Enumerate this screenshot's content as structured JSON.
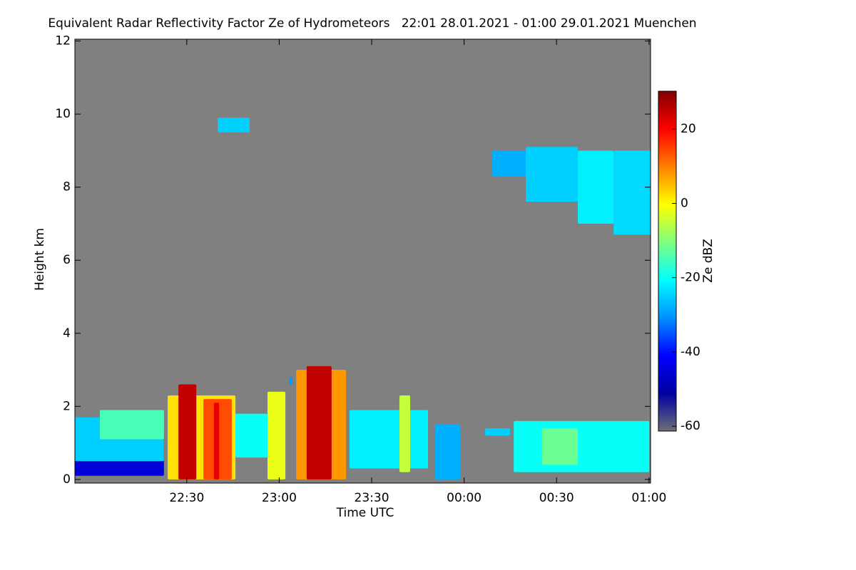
{
  "chart_data": {
    "type": "heatmap",
    "title": "Equivalent Radar Reflectivity Factor Ze of Hydrometeors   22:01 28.01.2021 - 01:00 29.01.2021 Muenchen",
    "x_label": "Time UTC",
    "y_label": "Height km",
    "colorbar_label": "Ze dBZ",
    "background": "#808080",
    "xlim": [
      1313.7,
      1500.5
    ],
    "xticks": [
      {
        "value": 1350,
        "label": "22:30"
      },
      {
        "value": 1380,
        "label": "23:00"
      },
      {
        "value": 1410,
        "label": "23:30"
      },
      {
        "value": 1440,
        "label": "00:00"
      },
      {
        "value": 1470,
        "label": "00:30"
      },
      {
        "value": 1500,
        "label": "01:00"
      }
    ],
    "ylim": [
      -0.1,
      12.05
    ],
    "yticks": [
      0,
      2,
      4,
      6,
      8,
      10,
      12
    ],
    "zlim": [
      -61.3,
      30.2
    ],
    "zticks": [
      -60,
      -40,
      -20,
      0,
      20
    ],
    "colors": [
      "#6e6e78",
      "#0000a0",
      "#0000ff",
      "#0090ff",
      "#00ffff",
      "#80ff80",
      "#ffff00",
      "#ff8000",
      "#ff0000",
      "#800000"
    ],
    "echoes": [
      {
        "t": [
          1313.7,
          1342.6
        ],
        "h": [
          0.1,
          1.6
        ],
        "ze": -45
      },
      {
        "t": [
          1313.7,
          1342.6
        ],
        "h": [
          0.5,
          1.7
        ],
        "ze": -25
      },
      {
        "t": [
          1321.8,
          1342.6
        ],
        "h": [
          1.1,
          1.9
        ],
        "ze": -15
      },
      {
        "t": [
          1343.8,
          1365.8
        ],
        "h": [
          0,
          2.3
        ],
        "ze": 2
      },
      {
        "t": [
          1347.3,
          1353.1
        ],
        "h": [
          0,
          2.6
        ],
        "ze": 25
      },
      {
        "t": [
          1355.4,
          1364.6
        ],
        "h": [
          0,
          2.2
        ],
        "ze": 14
      },
      {
        "t": [
          1358.8,
          1360.5
        ],
        "h": [
          0,
          2.1
        ],
        "ze": 22
      },
      {
        "t": [
          1365.8,
          1376.2
        ],
        "h": [
          0.6,
          1.8
        ],
        "ze": -20
      },
      {
        "t": [
          1376.2,
          1382
        ],
        "h": [
          0,
          2.4
        ],
        "ze": -2
      },
      {
        "t": [
          1383.2,
          1384.3
        ],
        "h": [
          2.6,
          2.8
        ],
        "ze": -30
      },
      {
        "t": [
          1385.5,
          1401.7
        ],
        "h": [
          0,
          3.0
        ],
        "ze": 8
      },
      {
        "t": [
          1388.9,
          1397.0
        ],
        "h": [
          0,
          3.1
        ],
        "ze": 25
      },
      {
        "t": [
          1402.8,
          1428.3
        ],
        "h": [
          0.3,
          1.9
        ],
        "ze": -22
      },
      {
        "t": [
          1419.0,
          1422.5
        ],
        "h": [
          0.2,
          2.3
        ],
        "ze": -5
      },
      {
        "t": [
          1430.6,
          1438.7
        ],
        "h": [
          0,
          1.5
        ],
        "ze": -28
      },
      {
        "t": [
          1446.8,
          1454.9
        ],
        "h": [
          1.2,
          1.4
        ],
        "ze": -25
      },
      {
        "t": [
          1456.1,
          1500.1
        ],
        "h": [
          0.2,
          1.6
        ],
        "ze": -20
      },
      {
        "t": [
          1465.3,
          1476.9
        ],
        "h": [
          0.4,
          1.4
        ],
        "ze": -12
      },
      {
        "t": [
          1360.0,
          1370.4
        ],
        "h": [
          9.5,
          9.9
        ],
        "ze": -25
      },
      {
        "t": [
          1449.1,
          1460.0
        ],
        "h": [
          8.3,
          9.0
        ],
        "ze": -28
      },
      {
        "t": [
          1460.0,
          1476.9
        ],
        "h": [
          7.6,
          9.1
        ],
        "ze": -25
      },
      {
        "t": [
          1476.9,
          1488.5
        ],
        "h": [
          7.0,
          9.0
        ],
        "ze": -22
      },
      {
        "t": [
          1488.5,
          1500.5
        ],
        "h": [
          6.7,
          9.0
        ],
        "ze": -24
      }
    ]
  }
}
